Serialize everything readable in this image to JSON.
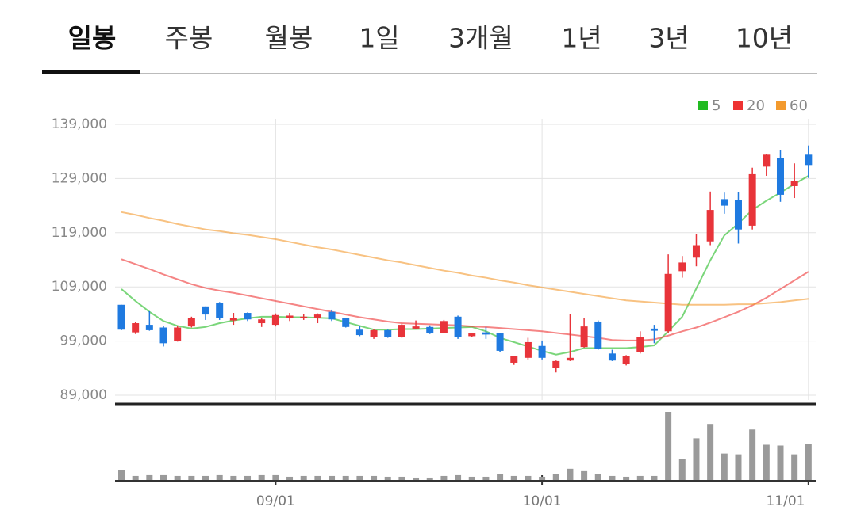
{
  "tabs": {
    "items": [
      "일봉",
      "주봉",
      "월봉",
      "1일",
      "3개월",
      "1년",
      "3년",
      "10년"
    ],
    "selected": 0
  },
  "chart_data": {
    "type": "candlestick",
    "categories": [
      null,
      null,
      null,
      null,
      null,
      null,
      null,
      null,
      null,
      null,
      null,
      "09/01",
      null,
      null,
      null,
      null,
      null,
      null,
      null,
      null,
      null,
      null,
      null,
      null,
      null,
      null,
      null,
      null,
      null,
      null,
      "10/01",
      null,
      null,
      null,
      null,
      null,
      null,
      null,
      null,
      null,
      null,
      null,
      null,
      null,
      null,
      null,
      null,
      null,
      null,
      "11/01"
    ],
    "ylim": [
      89000,
      139000
    ],
    "yticks": [
      {
        "value": 139000,
        "label": "139,000"
      },
      {
        "value": 129000,
        "label": "129,000"
      },
      {
        "value": 119000,
        "label": "119,000"
      },
      {
        "value": 109000,
        "label": "109,000"
      },
      {
        "value": 99000,
        "label": "99,000"
      },
      {
        "value": 89000,
        "label": "89,000"
      }
    ],
    "grid": true,
    "up_color": "#e8343a",
    "down_color": "#1f7ae0",
    "open": [
      105700,
      100600,
      102000,
      101500,
      99000,
      101700,
      105400,
      106100,
      102800,
      104200,
      102300,
      102000,
      103200,
      103300,
      103200,
      104400,
      103200,
      101100,
      99800,
      101000,
      99800,
      101300,
      101600,
      100500,
      103500,
      99900,
      100600,
      100400,
      95000,
      95900,
      98100,
      94000,
      95400,
      97900,
      102600,
      96700,
      94700,
      96900,
      101300,
      100800,
      111900,
      114400,
      117400,
      125200,
      125000,
      120300,
      131200,
      132800,
      127600,
      133400
    ],
    "high": [
      105700,
      102500,
      104500,
      101800,
      101800,
      103500,
      105400,
      106200,
      104200,
      104300,
      103300,
      104100,
      104200,
      104000,
      104100,
      104800,
      103300,
      101800,
      101200,
      101100,
      102200,
      102800,
      101900,
      102900,
      103700,
      100500,
      101600,
      100500,
      96300,
      99600,
      99100,
      95400,
      104000,
      103300,
      102800,
      97400,
      96400,
      100800,
      102000,
      115000,
      114700,
      118700,
      126600,
      126400,
      126500,
      131000,
      133500,
      134300,
      131800,
      135100
    ],
    "low": [
      101000,
      100300,
      100900,
      98000,
      98900,
      101500,
      102900,
      102900,
      102000,
      102700,
      101600,
      101700,
      102700,
      102900,
      102300,
      102700,
      101500,
      99900,
      99400,
      99600,
      99600,
      101200,
      100300,
      100400,
      99400,
      99700,
      99400,
      97000,
      94600,
      95600,
      95600,
      93200,
      95300,
      97800,
      97400,
      95300,
      94500,
      96700,
      98600,
      100500,
      110700,
      112800,
      116700,
      122500,
      117000,
      119600,
      129500,
      124700,
      125400,
      129100
    ],
    "close": [
      101100,
      102300,
      101000,
      98600,
      101500,
      103200,
      103900,
      103200,
      103300,
      103000,
      103000,
      103800,
      103700,
      103500,
      103900,
      103000,
      101600,
      100100,
      101000,
      99800,
      102000,
      101700,
      100400,
      102700,
      99800,
      100400,
      100200,
      97200,
      96200,
      98800,
      95900,
      95300,
      95900,
      101700,
      97600,
      95400,
      96200,
      99800,
      100900,
      111400,
      113500,
      116700,
      123200,
      124000,
      119600,
      129800,
      133400,
      126000,
      128500,
      131500
    ],
    "series": [
      {
        "name": "5",
        "color": "#22bb22",
        "values": [
          108600,
          106400,
          104400,
          102700,
          101800,
          101300,
          101600,
          102300,
          102800,
          103200,
          103500,
          103500,
          103400,
          103400,
          103300,
          103200,
          102500,
          101800,
          101100,
          101100,
          101200,
          101200,
          101300,
          101400,
          101500,
          101600,
          100800,
          99600,
          98800,
          98000,
          97200,
          96500,
          97000,
          97700,
          97700,
          97700,
          97700,
          97900,
          98200,
          100800,
          103500,
          108700,
          113900,
          118500,
          120700,
          123200,
          124900,
          126400,
          128000,
          129500
        ]
      },
      {
        "name": "20",
        "color": "#ee3333",
        "values": [
          114100,
          113200,
          112300,
          111300,
          110400,
          109500,
          108800,
          108300,
          107900,
          107400,
          106900,
          106400,
          105900,
          105400,
          104900,
          104400,
          103900,
          103400,
          103000,
          102600,
          102300,
          102200,
          102100,
          102000,
          101900,
          101700,
          101600,
          101400,
          101200,
          101000,
          100800,
          100500,
          100200,
          99900,
          99600,
          99200,
          99100,
          99100,
          99300,
          100000,
          100800,
          101500,
          102400,
          103400,
          104400,
          105600,
          107000,
          108600,
          110200,
          111800
        ]
      },
      {
        "name": "60",
        "color": "#f39a2e",
        "values": [
          122800,
          122300,
          121700,
          121200,
          120600,
          120100,
          119600,
          119300,
          118900,
          118600,
          118200,
          117800,
          117300,
          116800,
          116300,
          115900,
          115400,
          114900,
          114400,
          113900,
          113500,
          113000,
          112500,
          112000,
          111600,
          111100,
          110700,
          110200,
          109800,
          109300,
          108900,
          108500,
          108100,
          107700,
          107300,
          106900,
          106500,
          106300,
          106100,
          105900,
          105700,
          105700,
          105700,
          105700,
          105800,
          105800,
          106000,
          106200,
          106500,
          106800
        ]
      }
    ],
    "volume": {
      "color": "#9a9a9a",
      "values": [
        12,
        5,
        6,
        6,
        5,
        5,
        5,
        6,
        5,
        5,
        6,
        6,
        4,
        5,
        5,
        5,
        5,
        5,
        5,
        4,
        4,
        3,
        3,
        5,
        6,
        4,
        4,
        7,
        5,
        5,
        4,
        7,
        14,
        11,
        7,
        5,
        4,
        5,
        5,
        85,
        26,
        52,
        70,
        33,
        32,
        63,
        44,
        43,
        32,
        45
      ]
    }
  }
}
